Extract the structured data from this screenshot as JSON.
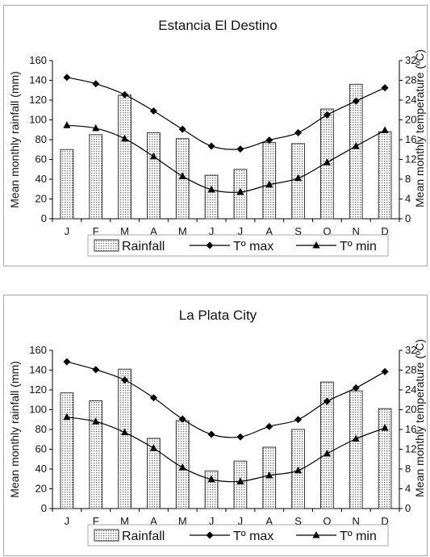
{
  "chart_data": [
    {
      "type": "bar",
      "title": "Estancia El Destino",
      "categories": [
        "J",
        "F",
        "M",
        "A",
        "M",
        "J",
        "J",
        "A",
        "S",
        "O",
        "N",
        "D"
      ],
      "ylabel": "Mean monthly rainfall (mm)",
      "y2label": "Mean monthly temperature (ºC)",
      "ylim": [
        0,
        160
      ],
      "y2lim": [
        0,
        32
      ],
      "yticks": [
        "0",
        "20",
        "40",
        "60",
        "80",
        "100",
        "120",
        "140",
        "160"
      ],
      "y2ticks": [
        "0",
        "4",
        "8",
        "12",
        "16",
        "20",
        "24",
        "28",
        "32"
      ],
      "grid": false,
      "legend_position": "bottom",
      "series": [
        {
          "name": "Rainfall",
          "type": "bar",
          "axis": "left",
          "values": [
            70,
            85,
            125,
            87,
            81,
            44,
            50,
            77,
            76,
            111,
            136,
            88
          ]
        },
        {
          "name": "Tº max",
          "type": "line",
          "marker": "diamond",
          "axis": "right",
          "values": [
            28.6,
            27.3,
            25.1,
            21.8,
            18.1,
            14.7,
            14.1,
            15.9,
            17.4,
            21.0,
            23.8,
            26.5
          ]
        },
        {
          "name": "Tº min",
          "type": "line",
          "marker": "triangle",
          "axis": "right",
          "values": [
            18.9,
            18.3,
            16.2,
            12.6,
            8.6,
            5.9,
            5.4,
            6.9,
            8.2,
            11.4,
            14.7,
            17.9
          ]
        }
      ]
    },
    {
      "type": "bar",
      "title": "La Plata City",
      "categories": [
        "J",
        "F",
        "M",
        "A",
        "M",
        "J",
        "J",
        "A",
        "S",
        "O",
        "N",
        "D"
      ],
      "ylabel": "Mean monthly rainfall (mm)",
      "y2label": "Mean monthly temperature (ºC)",
      "ylim": [
        0,
        160
      ],
      "y2lim": [
        0,
        32
      ],
      "yticks": [
        "0",
        "20",
        "40",
        "60",
        "80",
        "100",
        "120",
        "140",
        "160"
      ],
      "y2ticks": [
        "0",
        "4",
        "8",
        "12",
        "16",
        "20",
        "24",
        "28",
        "32"
      ],
      "grid": false,
      "legend_position": "bottom",
      "series": [
        {
          "name": "Rainfall",
          "type": "bar",
          "axis": "left",
          "values": [
            117,
            109,
            141,
            71,
            89,
            38,
            48,
            62,
            80,
            128,
            119,
            101
          ]
        },
        {
          "name": "Tº max",
          "type": "line",
          "marker": "diamond",
          "axis": "right",
          "values": [
            29.7,
            28.1,
            26.0,
            22.4,
            18.1,
            15.0,
            14.5,
            16.6,
            18.0,
            21.7,
            24.4,
            27.7
          ]
        },
        {
          "name": "Tº min",
          "type": "line",
          "marker": "triangle",
          "axis": "right",
          "values": [
            18.5,
            17.6,
            15.4,
            12.2,
            8.3,
            5.9,
            5.5,
            6.7,
            7.7,
            11.1,
            14.1,
            16.3
          ]
        }
      ]
    }
  ]
}
